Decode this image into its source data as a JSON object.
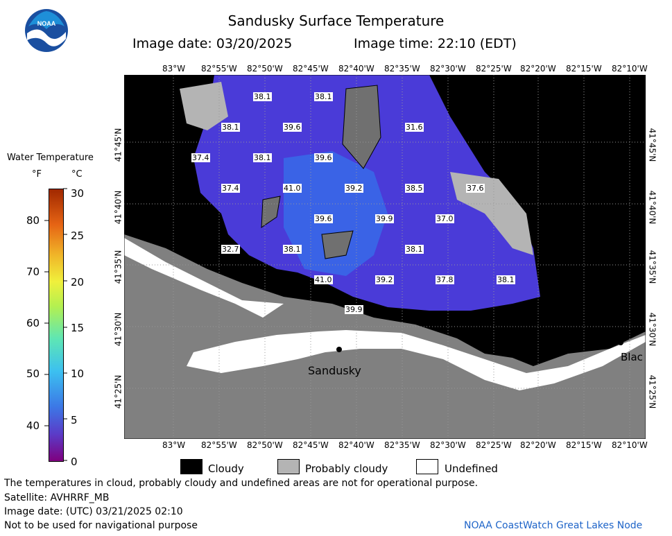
{
  "header": {
    "title": "Sandusky Surface Temperature",
    "image_date": "Image date: 03/20/2025",
    "image_time": "Image time: 22:10 (EDT)"
  },
  "logo": {
    "text": "NOAA",
    "icon": "noaa-logo-icon"
  },
  "colorbar": {
    "title": "Water Temperature",
    "unit_f": "°F",
    "unit_c": "°C",
    "f_ticks": [
      "80",
      "70",
      "60",
      "50",
      "40"
    ],
    "c_ticks": [
      "30",
      "25",
      "20",
      "15",
      "10",
      "5",
      "0"
    ]
  },
  "map": {
    "lon_labels": [
      "83°W",
      "82°55'W",
      "82°50'W",
      "82°45'W",
      "82°40'W",
      "82°35'W",
      "82°30'W",
      "82°25'W",
      "82°20'W",
      "82°15'W",
      "82°10'W"
    ],
    "lat_labels": [
      "41°45'N",
      "41°40'N",
      "41°35'N",
      "41°30'N",
      "41°25'N"
    ],
    "temp_labels": [
      "38.1",
      "38.1",
      "38.1",
      "39.6",
      "31.6",
      "37.4",
      "38.1",
      "39.6",
      "41.0",
      "39.2",
      "38.5",
      "37.6",
      "37.4",
      "39.6",
      "39.9",
      "37.0",
      "32.7",
      "38.1",
      "38.1",
      "41.0",
      "39.2",
      "37.8",
      "38.1",
      "39.9"
    ],
    "city_label": "Sandusky",
    "city_label_2": "Blac"
  },
  "legend": {
    "cloudy": "Cloudy",
    "probably_cloudy": "Probably cloudy",
    "undefined": "Undefined"
  },
  "footer": {
    "line1": "The temperatures in cloud, probably cloudy and undefined areas are not for operational purpose.",
    "line2": "Satellite: AVHRRF_MB",
    "line3": "Image date: (UTC) 03/21/2025  02:10",
    "line4": "Not to be used for navigational purpose",
    "credit": "NOAA CoastWatch Great Lakes Node"
  }
}
